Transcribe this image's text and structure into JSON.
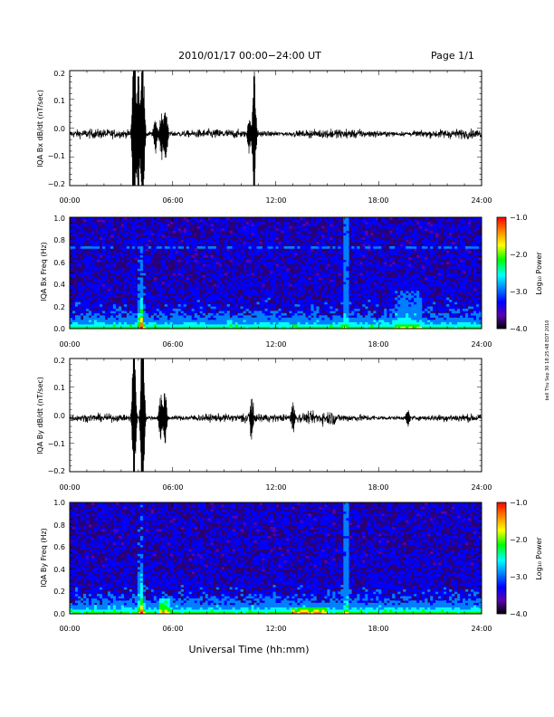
{
  "header": {
    "title": "2010/01/17  00:00−24:00 UT",
    "page": "Page 1/1"
  },
  "side_stamp": "bell Thu Sep 30 18:25:48 EDT 2010",
  "footer": {
    "xlabel": "Universal Time (hh:mm)"
  },
  "x_ticks": [
    "00:00",
    "06:00",
    "12:00",
    "18:00",
    "24:00"
  ],
  "colorbar": {
    "label": "Log₁₀ Power",
    "ticks": [
      "−1.0",
      "−2.0",
      "−3.0",
      "−4.0"
    ],
    "colors": [
      "#ff0000",
      "#ff8000",
      "#ffff00",
      "#00ff00",
      "#00ffff",
      "#0080ff",
      "#0000ff",
      "#5a00b0",
      "#000000"
    ]
  },
  "chart_data": [
    {
      "type": "line",
      "ylabel": "IQA Bx dB/dt (nT/sec)",
      "xlim": [
        0,
        24
      ],
      "ylim": [
        -0.2,
        0.2
      ],
      "yticks": [
        "0.2",
        "0.1",
        "0.0",
        "−0.1",
        "−0.2"
      ],
      "baseline": -0.02,
      "noise_amp": 0.012,
      "events": [
        {
          "t": 3.75,
          "amp": 0.35
        },
        {
          "t": 4.0,
          "amp": 0.2
        },
        {
          "t": 4.25,
          "amp": 0.3
        },
        {
          "t": 5.0,
          "amp": 0.06
        },
        {
          "t": 5.35,
          "amp": 0.08
        },
        {
          "t": 5.6,
          "amp": 0.1
        },
        {
          "t": 10.45,
          "amp": 0.06
        },
        {
          "t": 10.75,
          "amp": 0.2
        }
      ]
    },
    {
      "type": "heatmap",
      "ylabel": "IQA Bx Freq (Hz)",
      "xlim": [
        0,
        24
      ],
      "ylim": [
        0.0,
        1.0
      ],
      "yticks": [
        "1.0",
        "0.8",
        "0.6",
        "0.4",
        "0.2",
        "0.0"
      ],
      "zlim": [
        -4.0,
        -1.0
      ]
    },
    {
      "type": "line",
      "ylabel": "IQA By dB/dt (nT/sec)",
      "xlim": [
        0,
        24
      ],
      "ylim": [
        -0.2,
        0.2
      ],
      "yticks": [
        "0.2",
        "0.1",
        "0.0",
        "−0.1",
        "−0.2"
      ],
      "baseline": -0.01,
      "noise_amp": 0.01,
      "events": [
        {
          "t": 3.75,
          "amp": 0.3
        },
        {
          "t": 4.25,
          "amp": 0.4
        },
        {
          "t": 5.3,
          "amp": 0.08
        },
        {
          "t": 5.55,
          "amp": 0.09
        },
        {
          "t": 10.6,
          "amp": 0.06
        },
        {
          "t": 13.0,
          "amp": 0.05
        },
        {
          "t": 19.7,
          "amp": 0.03
        }
      ]
    },
    {
      "type": "heatmap",
      "ylabel": "IQA By Freq (Hz)",
      "xlim": [
        0,
        24
      ],
      "ylim": [
        0.0,
        1.0
      ],
      "yticks": [
        "1.0",
        "0.8",
        "0.6",
        "0.4",
        "0.2",
        "0.0"
      ],
      "zlim": [
        -4.0,
        -1.0
      ]
    }
  ]
}
